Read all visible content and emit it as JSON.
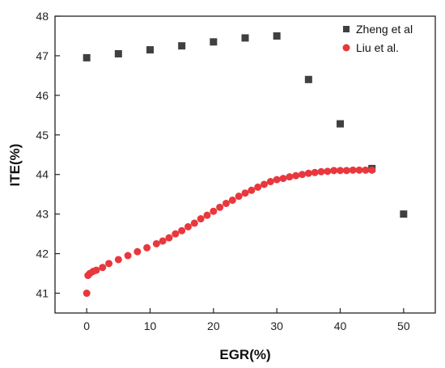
{
  "chart_data": {
    "type": "scatter",
    "title": "",
    "xlabel": "EGR(%)",
    "ylabel": "ITE(%)",
    "xlim": [
      -5,
      55
    ],
    "ylim": [
      40.5,
      48
    ],
    "xticks": [
      "0",
      "10",
      "20",
      "30",
      "40",
      "50"
    ],
    "yticks": [
      "41",
      "42",
      "43",
      "44",
      "45",
      "46",
      "47",
      "48"
    ],
    "grid": false,
    "legend_position": "top-right",
    "series": [
      {
        "name": "Zheng et al",
        "marker": "square",
        "color": "#404040",
        "x": [
          0,
          5,
          10,
          15,
          20,
          25,
          30,
          35,
          40,
          45,
          50
        ],
        "y": [
          46.95,
          47.05,
          47.15,
          47.25,
          47.35,
          47.45,
          47.5,
          46.4,
          45.28,
          44.15,
          43.0
        ]
      },
      {
        "name": "Liu et al.",
        "marker": "circle",
        "color": "#e8383d",
        "x": [
          0,
          0.2,
          0.5,
          1,
          1.5,
          2.5,
          3.5,
          5,
          6.5,
          8,
          9.5,
          11,
          12,
          13,
          14,
          15,
          16,
          17,
          18,
          19,
          20,
          21,
          22,
          23,
          24,
          25,
          26,
          27,
          28,
          29,
          30,
          31,
          32,
          33,
          34,
          35,
          36,
          37,
          38,
          39,
          40,
          41,
          42,
          43,
          44,
          45
        ],
        "y": [
          41.0,
          41.45,
          41.5,
          41.55,
          41.58,
          41.65,
          41.75,
          41.85,
          41.95,
          42.05,
          42.15,
          42.25,
          42.32,
          42.4,
          42.5,
          42.58,
          42.68,
          42.77,
          42.88,
          42.97,
          43.07,
          43.17,
          43.27,
          43.35,
          43.45,
          43.53,
          43.6,
          43.68,
          43.75,
          43.82,
          43.87,
          43.9,
          43.94,
          43.97,
          44.0,
          44.03,
          44.05,
          44.07,
          44.08,
          44.1,
          44.1,
          44.1,
          44.11,
          44.11,
          44.11,
          44.11
        ]
      }
    ]
  }
}
